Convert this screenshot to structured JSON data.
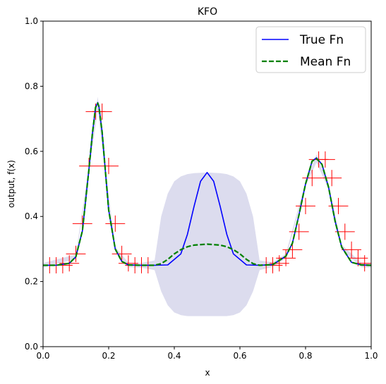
{
  "chart_data": {
    "type": "line",
    "title": "KFO",
    "xlabel": "x",
    "ylabel": "output, f(x)",
    "xlim": [
      0,
      1
    ],
    "ylim": [
      0,
      1
    ],
    "xticks": [
      0.0,
      0.2,
      0.4,
      0.6,
      0.8,
      1.0
    ],
    "xtick_labels": [
      "0.0",
      "0.2",
      "0.4",
      "0.6",
      "0.8",
      "1.0"
    ],
    "yticks": [
      0.0,
      0.2,
      0.4,
      0.6,
      0.8,
      1.0
    ],
    "ytick_labels": [
      "0.0",
      "0.2",
      "0.4",
      "0.6",
      "0.8",
      "1.0"
    ],
    "legend_position": "top-right",
    "series": [
      {
        "name": "True Fn",
        "color": "#0000ff",
        "style": "solid",
        "x": [
          0.0,
          0.04,
          0.08,
          0.1,
          0.12,
          0.14,
          0.15,
          0.16,
          0.1667,
          0.17,
          0.18,
          0.19,
          0.2,
          0.22,
          0.24,
          0.26,
          0.3,
          0.34,
          0.38,
          0.42,
          0.44,
          0.46,
          0.48,
          0.5,
          0.52,
          0.54,
          0.56,
          0.58,
          0.62,
          0.66,
          0.7,
          0.74,
          0.76,
          0.78,
          0.8,
          0.82,
          0.8333,
          0.85,
          0.87,
          0.89,
          0.91,
          0.94,
          0.97,
          1.0
        ],
        "y": [
          0.25,
          0.25,
          0.256,
          0.276,
          0.356,
          0.546,
          0.652,
          0.735,
          0.75,
          0.74,
          0.66,
          0.54,
          0.42,
          0.3,
          0.262,
          0.251,
          0.25,
          0.25,
          0.251,
          0.285,
          0.345,
          0.43,
          0.508,
          0.535,
          0.508,
          0.43,
          0.345,
          0.285,
          0.251,
          0.25,
          0.252,
          0.278,
          0.318,
          0.405,
          0.5,
          0.57,
          0.58,
          0.56,
          0.49,
          0.385,
          0.306,
          0.259,
          0.251,
          0.25
        ]
      },
      {
        "name": "Mean Fn",
        "color": "#008000",
        "style": "dashed",
        "x": [
          0.0,
          0.04,
          0.08,
          0.1,
          0.12,
          0.14,
          0.15,
          0.16,
          0.1667,
          0.17,
          0.18,
          0.19,
          0.2,
          0.22,
          0.24,
          0.26,
          0.3,
          0.34,
          0.36,
          0.38,
          0.4,
          0.42,
          0.44,
          0.46,
          0.5,
          0.54,
          0.56,
          0.58,
          0.6,
          0.62,
          0.64,
          0.66,
          0.7,
          0.74,
          0.76,
          0.78,
          0.8,
          0.82,
          0.8333,
          0.85,
          0.87,
          0.89,
          0.91,
          0.94,
          0.97,
          1.0
        ],
        "y": [
          0.25,
          0.25,
          0.256,
          0.276,
          0.356,
          0.546,
          0.652,
          0.735,
          0.748,
          0.738,
          0.66,
          0.54,
          0.42,
          0.3,
          0.262,
          0.251,
          0.25,
          0.25,
          0.255,
          0.268,
          0.285,
          0.298,
          0.307,
          0.312,
          0.315,
          0.312,
          0.307,
          0.298,
          0.285,
          0.268,
          0.255,
          0.25,
          0.252,
          0.278,
          0.318,
          0.405,
          0.5,
          0.57,
          0.578,
          0.56,
          0.49,
          0.385,
          0.306,
          0.259,
          0.251,
          0.25
        ]
      }
    ],
    "uncertainty_band": {
      "color": "#dcdcee",
      "x": [
        0.0,
        0.1,
        0.14,
        0.1667,
        0.19,
        0.22,
        0.26,
        0.3,
        0.34,
        0.36,
        0.38,
        0.4,
        0.42,
        0.44,
        0.46,
        0.5,
        0.54,
        0.56,
        0.58,
        0.6,
        0.62,
        0.64,
        0.66,
        0.7,
        0.74,
        0.8,
        0.8333,
        0.87,
        0.91,
        0.97,
        1.0
      ],
      "upper": [
        0.257,
        0.283,
        0.556,
        0.768,
        0.55,
        0.307,
        0.258,
        0.257,
        0.265,
        0.4,
        0.47,
        0.508,
        0.523,
        0.53,
        0.533,
        0.535,
        0.533,
        0.53,
        0.523,
        0.508,
        0.47,
        0.4,
        0.265,
        0.259,
        0.285,
        0.507,
        0.59,
        0.497,
        0.313,
        0.258,
        0.257
      ],
      "lower": [
        0.243,
        0.269,
        0.536,
        0.728,
        0.53,
        0.293,
        0.244,
        0.243,
        0.235,
        0.17,
        0.127,
        0.105,
        0.097,
        0.094,
        0.094,
        0.094,
        0.094,
        0.094,
        0.097,
        0.105,
        0.127,
        0.17,
        0.235,
        0.245,
        0.271,
        0.493,
        0.566,
        0.483,
        0.299,
        0.244,
        0.243
      ]
    },
    "observations": {
      "color": "#ff0000",
      "marker": "cross",
      "x": [
        0.0,
        0.02,
        0.04,
        0.06,
        0.08,
        0.1,
        0.12,
        0.14,
        0.16,
        0.18,
        0.2,
        0.22,
        0.24,
        0.26,
        0.28,
        0.3,
        0.32,
        0.68,
        0.7,
        0.72,
        0.74,
        0.76,
        0.78,
        0.8,
        0.82,
        0.84,
        0.86,
        0.88,
        0.9,
        0.92,
        0.94,
        0.96,
        0.98,
        1.0
      ],
      "y": [
        0.25,
        0.25,
        0.25,
        0.25,
        0.256,
        0.285,
        0.378,
        0.555,
        0.722,
        0.722,
        0.555,
        0.378,
        0.285,
        0.256,
        0.25,
        0.25,
        0.25,
        0.25,
        0.25,
        0.256,
        0.272,
        0.298,
        0.353,
        0.432,
        0.518,
        0.575,
        0.575,
        0.518,
        0.432,
        0.353,
        0.298,
        0.272,
        0.256,
        0.25
      ],
      "y_err": 0.025,
      "x_err": 0.03
    }
  }
}
